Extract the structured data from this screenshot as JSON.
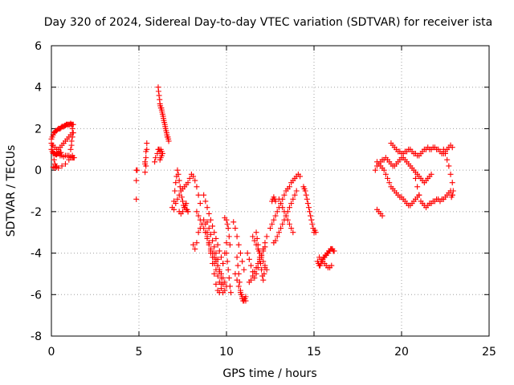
{
  "chart_data": {
    "type": "scatter",
    "title": "Day 320 of 2024, Sidereal Day-to-day VTEC variation (SDTVAR) for receiver ista",
    "xlabel": "GPS time / hours",
    "ylabel": "SDTVAR / TECUs",
    "xlim": [
      0,
      25
    ],
    "ylim": [
      -8,
      6
    ],
    "xticks": [
      0,
      5,
      10,
      15,
      20,
      25
    ],
    "yticks": [
      -8,
      -6,
      -4,
      -2,
      0,
      2,
      4,
      6
    ],
    "xtick_labels": [
      "0",
      "5",
      "10",
      "15",
      "20",
      "25"
    ],
    "ytick_labels": [
      "-8",
      "-6",
      "-4",
      "-2",
      "0",
      "2",
      "4",
      "6"
    ],
    "grid": true,
    "marker": "plus",
    "color": "#ff0000",
    "series": [
      {
        "x": [
          0.0,
          0.05,
          0.1,
          0.15,
          0.2,
          0.25,
          0.3,
          0.35,
          0.4,
          0.45,
          0.5,
          0.55,
          0.6,
          0.65,
          0.7,
          0.75,
          0.8,
          0.85,
          0.9,
          0.95,
          1.0,
          1.05,
          1.1,
          1.15,
          1.2,
          1.25,
          0.0,
          0.1,
          0.2,
          0.3,
          0.4,
          0.5,
          0.6,
          0.7,
          0.8,
          0.9,
          1.0,
          1.1,
          1.2,
          0.05,
          0.1,
          0.15,
          0.2,
          0.25,
          0.3,
          0.35,
          0.4,
          0.45,
          0.5,
          0.55,
          0.5,
          0.6,
          0.7,
          0.8,
          0.9,
          1.0,
          1.1,
          1.2,
          1.25,
          1.3,
          0.1,
          0.2,
          0.3,
          0.4,
          0.6,
          0.8,
          1.0,
          1.1,
          1.2,
          0.0,
          0.05,
          0.1,
          0.15,
          0.2,
          0.25,
          1.1,
          1.15,
          1.2,
          1.25,
          1.2,
          1.15
        ],
        "y": [
          1.5,
          1.6,
          1.7,
          1.8,
          1.85,
          1.9,
          1.9,
          1.95,
          2.0,
          2.0,
          2.0,
          2.05,
          2.1,
          2.1,
          2.1,
          2.15,
          2.15,
          2.2,
          2.2,
          2.2,
          2.2,
          2.2,
          2.25,
          2.2,
          2.2,
          2.2,
          1.3,
          1.2,
          1.1,
          1.0,
          1.0,
          1.1,
          1.2,
          1.3,
          1.4,
          1.5,
          1.6,
          1.7,
          1.8,
          0.9,
          0.85,
          0.8,
          0.8,
          0.75,
          0.75,
          0.8,
          0.8,
          0.8,
          0.85,
          0.85,
          0.7,
          0.7,
          0.65,
          0.7,
          0.7,
          0.7,
          0.65,
          0.6,
          0.6,
          0.6,
          0.15,
          0.1,
          0.15,
          0.1,
          0.2,
          0.3,
          0.5,
          0.6,
          0.7,
          1.0,
          1.2,
          0.8,
          0.5,
          0.3,
          0.2,
          1.0,
          1.4,
          1.6,
          1.8,
          2.0,
          1.2
        ]
      },
      {
        "x": [
          4.85,
          4.85,
          4.85,
          4.9,
          5.35,
          5.4,
          5.45,
          5.45,
          5.4,
          5.35,
          5.35,
          5.4,
          5.9,
          5.95,
          6.05,
          6.1,
          6.15,
          6.2,
          6.25,
          6.3,
          6.35,
          6.3,
          6.25,
          6.2,
          6.1,
          6.12,
          6.15,
          6.18,
          6.2,
          6.22,
          6.25,
          6.28,
          6.3,
          6.32,
          6.35,
          6.38,
          6.4,
          6.42,
          6.45,
          6.48,
          6.5,
          6.52,
          6.55,
          6.58,
          6.6,
          6.62,
          6.65,
          6.68,
          6.7
        ],
        "y": [
          0.0,
          -0.5,
          -1.4,
          0.0,
          0.3,
          0.6,
          1.0,
          1.3,
          0.9,
          0.4,
          -0.1,
          0.2,
          0.4,
          0.6,
          0.8,
          1.0,
          1.0,
          0.9,
          1.0,
          0.9,
          0.8,
          0.7,
          0.6,
          0.5,
          4.0,
          3.8,
          3.6,
          3.4,
          3.2,
          3.1,
          3.0,
          3.0,
          2.9,
          2.8,
          2.7,
          2.6,
          2.5,
          2.4,
          2.3,
          2.2,
          2.1,
          2.0,
          1.9,
          1.8,
          1.7,
          1.6,
          1.6,
          1.5,
          1.4
        ]
      },
      {
        "x": [
          6.9,
          7.0,
          7.05,
          7.1,
          7.15,
          7.2,
          7.25,
          7.3,
          7.35,
          7.4,
          7.45,
          7.5,
          7.55,
          7.6,
          7.65,
          7.7,
          7.75,
          7.8,
          7.0,
          7.1,
          7.2,
          7.3,
          7.4,
          7.5,
          7.6,
          7.7,
          7.8,
          7.9,
          8.0,
          8.1,
          8.2,
          8.3,
          8.4,
          8.5,
          7.3,
          7.4,
          7.5,
          7.6,
          7.7,
          7.8,
          8.1,
          8.2,
          8.3,
          8.4,
          8.5,
          8.6,
          8.7,
          8.8,
          8.9,
          9.0,
          9.1,
          9.2,
          9.3,
          9.4,
          9.5,
          9.6,
          9.7,
          9.8,
          9.9,
          10.0,
          8.3,
          8.4,
          8.5,
          8.6,
          8.7,
          8.8,
          8.9,
          9.0,
          9.1,
          9.2,
          9.3,
          9.4,
          9.5,
          9.6,
          9.7,
          9.8,
          9.9,
          10.0,
          8.7,
          8.8,
          8.9,
          9.0,
          9.1,
          9.2,
          9.3,
          9.4,
          9.5,
          9.6,
          9.7,
          9.8,
          8.8,
          8.9,
          9.0,
          9.1,
          9.2,
          9.3,
          9.4,
          9.5,
          9.6,
          9.7,
          9.8,
          9.3,
          9.4,
          9.5,
          9.6,
          9.7,
          9.8,
          9.9,
          8.9,
          9.0,
          9.1,
          9.2,
          9.3,
          9.4,
          9.5
        ],
        "y": [
          -1.8,
          -1.5,
          -1.0,
          -0.6,
          -0.3,
          0.0,
          -0.2,
          -0.5,
          -0.8,
          -1.0,
          -1.3,
          -1.5,
          -1.7,
          -1.8,
          -1.7,
          -1.6,
          -1.9,
          -2.0,
          -1.9,
          -1.6,
          -1.4,
          -1.2,
          -1.0,
          -0.9,
          -0.8,
          -0.7,
          -0.6,
          -0.4,
          -0.2,
          -0.3,
          -0.5,
          -0.8,
          -1.2,
          -1.6,
          -2.0,
          -2.1,
          -2.0,
          -1.8,
          -1.9,
          -2.0,
          -3.6,
          -3.8,
          -3.5,
          -3.0,
          -2.8,
          -2.6,
          -2.4,
          -2.6,
          -3.0,
          -3.5,
          -4.0,
          -4.5,
          -5.0,
          -5.5,
          -5.8,
          -5.9,
          -5.5,
          -4.5,
          -4.0,
          -3.5,
          -2.0,
          -2.2,
          -2.4,
          -2.6,
          -2.8,
          -3.0,
          -3.2,
          -3.5,
          -3.8,
          -4.0,
          -4.2,
          -4.4,
          -4.6,
          -4.8,
          -5.0,
          -5.2,
          -5.4,
          -5.6,
          -1.2,
          -1.5,
          -1.8,
          -2.1,
          -2.4,
          -2.7,
          -3.0,
          -3.3,
          -3.6,
          -3.9,
          -4.2,
          -4.5,
          -3.0,
          -3.3,
          -3.6,
          -3.9,
          -4.2,
          -4.5,
          -4.8,
          -5.1,
          -5.4,
          -5.7,
          -5.9,
          -4.0,
          -4.3,
          -4.6,
          -4.9,
          -5.2,
          -5.5,
          -5.8,
          -2.5,
          -2.8,
          -3.1,
          -3.4,
          -3.7,
          -4.0,
          -4.3
        ]
      },
      {
        "x": [
          9.9,
          10.0,
          10.05,
          10.1,
          10.15,
          10.2,
          10.0,
          10.05,
          10.1,
          10.15,
          10.2,
          10.25,
          10.4,
          10.5,
          10.6,
          10.7,
          10.8,
          10.9,
          11.0,
          10.5,
          10.6,
          10.7,
          10.8,
          10.9,
          11.0,
          11.1,
          10.6,
          10.65,
          10.7,
          10.75,
          10.8,
          10.85,
          10.9,
          10.95,
          11.0,
          11.05,
          11.1,
          11.2,
          11.3,
          11.4,
          11.5,
          11.6,
          11.7,
          11.8,
          11.9,
          12.0,
          12.1,
          12.2,
          12.3,
          11.3,
          11.4,
          11.5,
          11.6,
          11.7,
          11.8,
          11.9,
          12.0,
          12.1,
          12.2,
          11.5,
          11.6,
          11.7,
          11.8,
          11.9,
          12.0,
          12.1,
          12.2,
          12.3,
          11.7,
          11.75,
          11.8,
          11.85,
          11.9,
          11.95,
          12.0,
          12.05,
          12.1,
          12.15,
          12.2
        ],
        "y": [
          -2.3,
          -2.4,
          -2.6,
          -2.8,
          -3.2,
          -3.6,
          -4.0,
          -4.4,
          -4.8,
          -5.2,
          -5.6,
          -5.9,
          -2.5,
          -2.8,
          -3.2,
          -3.6,
          -4.0,
          -4.4,
          -4.8,
          -5.0,
          -5.3,
          -5.6,
          -5.9,
          -6.1,
          -6.2,
          -6.3,
          -4.2,
          -4.6,
          -5.0,
          -5.4,
          -5.8,
          -6.0,
          -6.2,
          -6.3,
          -6.3,
          -6.2,
          -6.1,
          -4.0,
          -4.3,
          -4.6,
          -4.9,
          -5.2,
          -5.0,
          -4.7,
          -4.4,
          -4.1,
          -3.8,
          -3.5,
          -3.2,
          -5.4,
          -5.3,
          -5.1,
          -4.9,
          -4.7,
          -4.5,
          -4.3,
          -4.1,
          -3.9,
          -3.7,
          -3.2,
          -3.4,
          -3.6,
          -3.8,
          -4.0,
          -4.2,
          -4.4,
          -4.6,
          -4.8,
          -3.0,
          -3.3,
          -3.6,
          -3.9,
          -4.2,
          -4.5,
          -4.8,
          -5.1,
          -5.3,
          -5.0,
          -4.7
        ]
      },
      {
        "x": [
          12.5,
          12.6,
          12.7,
          12.8,
          12.9,
          13.0,
          13.1,
          13.2,
          13.3,
          13.4,
          13.5,
          13.6,
          13.7,
          13.8,
          13.9,
          14.0,
          14.1,
          14.2,
          12.7,
          12.8,
          12.9,
          13.0,
          13.1,
          13.2,
          13.3,
          13.4,
          13.5,
          13.6,
          13.7,
          13.8,
          13.9,
          14.0,
          13.0,
          13.1,
          13.2,
          13.3,
          13.4,
          13.5,
          13.6,
          13.7,
          13.8,
          12.6,
          12.65,
          12.7,
          12.75,
          12.8
        ],
        "y": [
          -2.8,
          -2.6,
          -2.4,
          -2.2,
          -2.0,
          -1.8,
          -1.6,
          -1.4,
          -1.2,
          -1.0,
          -0.9,
          -0.8,
          -0.6,
          -0.5,
          -0.4,
          -0.3,
          -0.2,
          -0.3,
          -3.5,
          -3.4,
          -3.2,
          -3.0,
          -2.8,
          -2.6,
          -2.4,
          -2.2,
          -2.0,
          -1.8,
          -1.6,
          -1.4,
          -1.2,
          -1.0,
          -1.4,
          -1.6,
          -1.8,
          -2.0,
          -2.2,
          -2.4,
          -2.6,
          -2.8,
          -3.0,
          -1.5,
          -1.4,
          -1.3,
          -1.4,
          -1.5
        ]
      },
      {
        "x": [
          14.4,
          14.45,
          14.5,
          14.55,
          14.6,
          14.65,
          14.7,
          14.75,
          14.8,
          14.85,
          14.9,
          14.95,
          15.0,
          15.05,
          15.1,
          15.2,
          15.25,
          15.3,
          15.35,
          15.4,
          15.45,
          15.5,
          15.55,
          15.6,
          15.65,
          15.7,
          15.75,
          15.8,
          15.85,
          15.9,
          15.95,
          16.0,
          16.05,
          16.1,
          16.15,
          15.3,
          15.4,
          15.5,
          15.6,
          15.7,
          15.8,
          15.9,
          16.0
        ],
        "y": [
          -0.8,
          -0.9,
          -1.0,
          -1.2,
          -1.4,
          -1.6,
          -1.8,
          -2.0,
          -2.2,
          -2.4,
          -2.6,
          -2.8,
          -3.0,
          -2.9,
          -3.0,
          -4.4,
          -4.5,
          -4.6,
          -4.6,
          -4.5,
          -4.4,
          -4.3,
          -4.2,
          -4.2,
          -4.1,
          -4.1,
          -4.0,
          -4.0,
          -3.9,
          -3.9,
          -3.8,
          -3.8,
          -3.8,
          -3.9,
          -3.9,
          -4.2,
          -4.3,
          -4.4,
          -4.5,
          -4.6,
          -4.7,
          -4.7,
          -4.6
        ]
      },
      {
        "x": [
          18.6,
          18.7,
          18.8,
          18.9,
          19.0,
          19.1,
          19.2,
          19.3,
          19.4,
          19.5,
          19.6,
          19.7,
          19.8,
          19.9,
          20.0,
          20.1,
          20.2,
          20.3,
          20.4,
          20.5,
          20.6,
          20.7,
          20.8,
          20.9,
          21.0,
          18.5,
          18.6,
          18.7,
          18.8,
          18.9,
          19.0,
          19.1,
          19.2,
          19.3,
          19.4,
          19.5,
          19.6,
          19.7,
          19.8,
          19.9,
          20.0,
          20.1,
          20.2,
          20.3,
          20.4,
          20.5,
          20.6,
          20.7,
          20.8,
          20.9,
          21.0,
          21.1,
          21.2,
          21.3,
          21.4,
          21.5,
          21.6,
          21.7,
          19.4,
          19.5,
          19.6,
          19.7,
          19.8,
          19.9,
          20.0,
          20.1,
          20.2,
          20.3,
          20.4,
          20.5,
          20.6,
          20.7,
          20.8,
          20.9,
          21.0,
          21.1,
          21.2,
          21.3,
          21.4,
          21.5,
          21.6,
          21.7,
          21.8,
          21.9,
          22.0,
          22.1,
          22.2,
          22.3,
          22.4,
          22.5,
          22.6,
          22.7,
          22.8,
          22.9,
          20.8,
          20.9,
          21.0,
          21.1,
          21.2,
          21.3,
          21.4,
          21.5,
          21.6,
          21.7,
          21.8,
          21.9,
          22.0,
          22.1,
          22.2,
          22.3,
          22.4,
          22.5,
          22.6,
          22.7,
          22.8,
          22.9,
          22.4,
          22.5,
          22.6,
          22.7,
          22.8,
          22.9,
          22.95,
          22.9,
          22.85,
          22.8,
          18.6,
          18.7,
          18.8,
          18.9
        ],
        "y": [
          0.4,
          0.3,
          0.2,
          0.1,
          0.0,
          -0.2,
          -0.4,
          -0.6,
          -0.8,
          -0.9,
          -1.0,
          -1.1,
          -1.2,
          -1.3,
          -1.3,
          -1.4,
          -1.5,
          -1.6,
          -1.7,
          -1.7,
          -1.6,
          -1.5,
          -1.4,
          -1.3,
          -1.2,
          0.0,
          0.2,
          0.3,
          0.4,
          0.5,
          0.5,
          0.6,
          0.5,
          0.4,
          0.3,
          0.2,
          0.2,
          0.3,
          0.4,
          0.5,
          0.6,
          0.6,
          0.5,
          0.4,
          0.3,
          0.2,
          0.1,
          0.0,
          -0.1,
          -0.2,
          -0.3,
          -0.4,
          -0.5,
          -0.6,
          -0.5,
          -0.4,
          -0.3,
          -0.2,
          1.3,
          1.2,
          1.1,
          1.0,
          0.9,
          0.9,
          0.8,
          0.8,
          0.9,
          0.9,
          1.0,
          1.0,
          0.9,
          0.8,
          0.8,
          0.7,
          0.7,
          0.8,
          0.9,
          1.0,
          1.0,
          1.1,
          1.0,
          1.0,
          1.1,
          1.1,
          1.0,
          1.0,
          0.9,
          0.8,
          0.8,
          0.9,
          1.0,
          1.1,
          1.2,
          1.1,
          -0.4,
          -0.8,
          -1.2,
          -1.5,
          -1.6,
          -1.7,
          -1.8,
          -1.7,
          -1.6,
          -1.6,
          -1.5,
          -1.5,
          -1.4,
          -1.4,
          -1.5,
          -1.4,
          -1.4,
          -1.3,
          -1.2,
          -1.1,
          -1.0,
          -1.2,
          1.0,
          0.8,
          0.5,
          0.2,
          -0.2,
          -0.6,
          -1.0,
          -1.2,
          -1.3,
          -1.0,
          -1.9,
          -2.0,
          -2.1,
          -2.2
        ]
      }
    ]
  }
}
